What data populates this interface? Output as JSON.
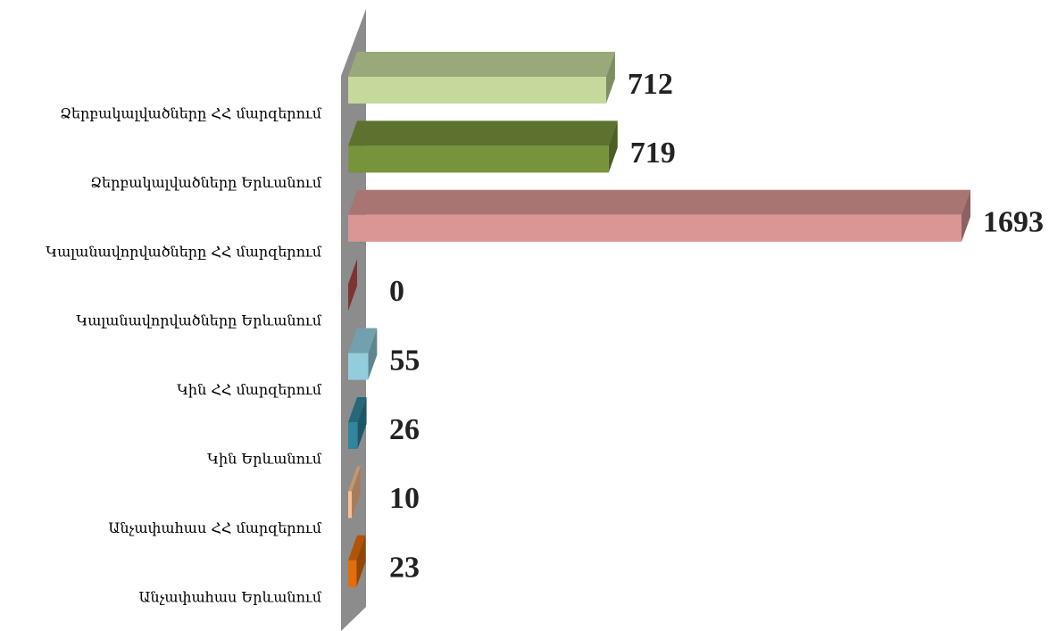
{
  "chart_data": {
    "type": "bar3d_horizontal",
    "categories": [
      "Ձերբակալվածները ՀՀ մարզերում",
      "Ձերբակալվածները  Երևանում",
      "Կալանավորվածները ՀՀ մարզերում",
      "Կալանավորվածները Երևանում",
      "Կին ՀՀ մարզերում",
      "Կին Երևանում",
      "Անչափահաս ՀՀ մարզերում",
      "Անչափահաս Երևանում"
    ],
    "values": [
      712,
      719,
      1693,
      0,
      55,
      26,
      10,
      23
    ],
    "colors": [
      "#c4d99b",
      "#77933c",
      "#d99694",
      "#c0504d",
      "#93cddd",
      "#31859c",
      "#fac090",
      "#e46c0a"
    ]
  }
}
